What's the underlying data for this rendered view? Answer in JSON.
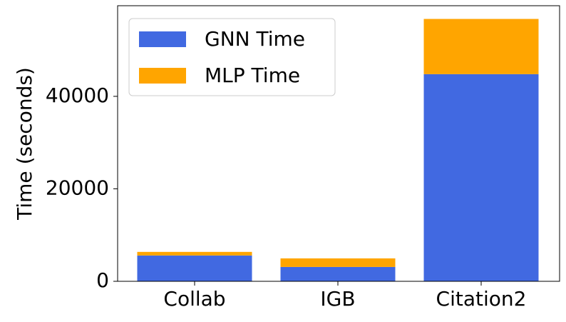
{
  "chart_data": {
    "type": "bar",
    "stacked": true,
    "y_label": "Time (seconds)",
    "categories": [
      "Collab",
      "IGB",
      "Citation2"
    ],
    "series": [
      {
        "name": "GNN Time",
        "color": "#4169e1",
        "values": [
          5580,
          3100,
          44800
        ]
      },
      {
        "name": "MLP Time",
        "color": "#ffa500",
        "values": [
          780,
          1860,
          11940
        ]
      }
    ],
    "ylim": [
      0,
      59600
    ],
    "yticks": [
      0,
      20000,
      40000
    ],
    "legend": "upper-left",
    "grid": false
  }
}
